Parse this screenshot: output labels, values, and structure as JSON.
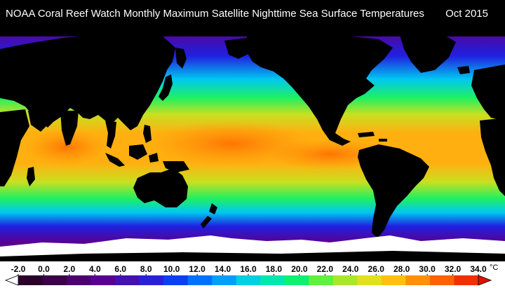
{
  "title": "NOAA Coral Reef Watch Monthly Maximum Satellite Nighttime Sea Surface Temperatures",
  "date": "Oct 2015",
  "legend": {
    "unit": "°C",
    "ticks": [
      "-2.0",
      "0.0",
      "2.0",
      "4.0",
      "6.0",
      "8.0",
      "10.0",
      "12.0",
      "14.0",
      "16.0",
      "18.0",
      "20.0",
      "22.0",
      "24.0",
      "26.0",
      "28.0",
      "30.0",
      "32.0",
      "34.0"
    ],
    "colors": [
      "#ffffff",
      "#2a002a",
      "#3a0048",
      "#4c0070",
      "#5a0090",
      "#4410b0",
      "#2a20d8",
      "#0a40f0",
      "#0070ff",
      "#00a0f8",
      "#00d0e0",
      "#00e8b0",
      "#10f070",
      "#60f040",
      "#a8e828",
      "#e0e020",
      "#ffc010",
      "#ff9008",
      "#ff6000",
      "#f03000",
      "#e01000"
    ],
    "colors_meaning": "left arrow (below -2.0) through right arrow (above 34.0)"
  },
  "map_colors": {
    "land": "#000000",
    "ice": "#ffffff",
    "polar_water": "#5a0090",
    "cold_water": "#2020e0",
    "cool_water": "#00c8f0",
    "temperate_water": "#20f060",
    "subtropical_water": "#c8e020",
    "warm_water": "#ffb010",
    "hot_water": "#ff7808"
  }
}
